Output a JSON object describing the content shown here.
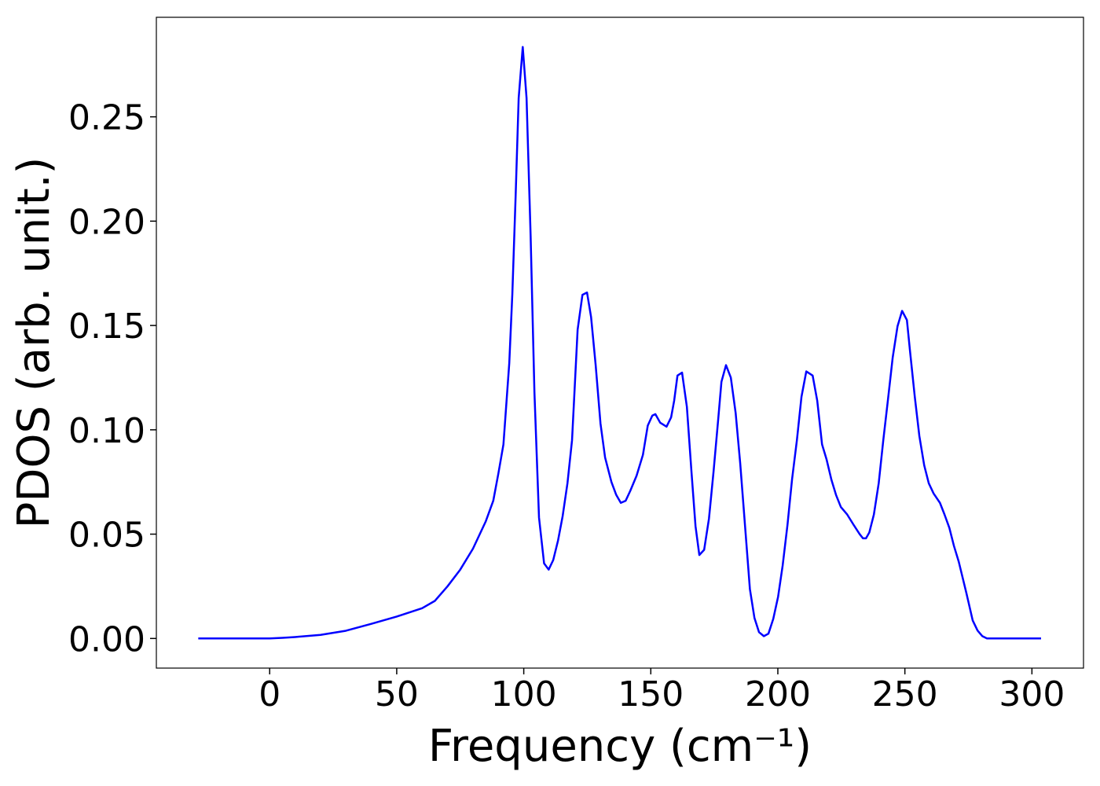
{
  "chart_data": {
    "type": "line",
    "xlabel": "Frequency (cm⁻¹)",
    "ylabel": "PDOS (arb. unit.)",
    "xlim": [
      -44.6,
      320.3
    ],
    "ylim": [
      -0.0142,
      0.2977
    ],
    "xticks": [
      0,
      50,
      100,
      150,
      200,
      250,
      300
    ],
    "yticks": [
      {
        "value": 0,
        "label": "0.00"
      },
      {
        "value": 0.05,
        "label": "0.05"
      },
      {
        "value": 0.1,
        "label": "0.10"
      },
      {
        "value": 0.15,
        "label": "0.15"
      },
      {
        "value": 0.2,
        "label": "0.20"
      },
      {
        "value": 0.25,
        "label": "0.25"
      }
    ],
    "x": [
      -28.1,
      0,
      5,
      10,
      20,
      30,
      40,
      50,
      60,
      65,
      70,
      75,
      80,
      85,
      88,
      90,
      92,
      94.3,
      95.5,
      96.8,
      98,
      99.6,
      101.1,
      102.7,
      104.2,
      106,
      108,
      109.8,
      111.6,
      113.5,
      115.3,
      117.2,
      119,
      121.2,
      123.1,
      124.9,
      126.5,
      128.3,
      130.2,
      132,
      134.5,
      136.4,
      138.2,
      140.1,
      141.9,
      144.4,
      146.9,
      148.8,
      150.6,
      151.8,
      153.7,
      156.2,
      158,
      159.2,
      160.5,
      162.3,
      164.2,
      166,
      167.6,
      169.1,
      171,
      172.9,
      174.7,
      176.6,
      177.8,
      179.6,
      181.5,
      183.4,
      185.2,
      187.1,
      189,
      190.8,
      192.6,
      194.5,
      196.3,
      198.2,
      200.1,
      201.9,
      203.8,
      205.6,
      207.5,
      209.3,
      211.2,
      213.7,
      215.5,
      217.4,
      219.2,
      221.1,
      222.9,
      224.8,
      227.3,
      229.8,
      232.2,
      233.5,
      234.7,
      236,
      237.8,
      239.7,
      241.5,
      243.3,
      245.2,
      247.1,
      248.9,
      250.8,
      252,
      253.9,
      255.7,
      257.6,
      259.4,
      261.3,
      263.8,
      265.6,
      267.5,
      269.3,
      271.2,
      274.2,
      276.7,
      278.6,
      280.5,
      282.3,
      286.6,
      303.6
    ],
    "series": [
      {
        "color": "#0000ff",
        "values": [
          0,
          0,
          0.0003,
          0.0007,
          0.0017,
          0.0037,
          0.007,
          0.0105,
          0.0145,
          0.018,
          0.025,
          0.033,
          0.043,
          0.056,
          0.066,
          0.079,
          0.093,
          0.132,
          0.165,
          0.212,
          0.259,
          0.2835,
          0.259,
          0.193,
          0.118,
          0.058,
          0.036,
          0.033,
          0.0376,
          0.047,
          0.0586,
          0.0744,
          0.095,
          0.148,
          0.1647,
          0.1658,
          0.154,
          0.131,
          0.103,
          0.0868,
          0.075,
          0.0688,
          0.065,
          0.066,
          0.0707,
          0.078,
          0.088,
          0.102,
          0.1068,
          0.1075,
          0.1034,
          0.1015,
          0.106,
          0.114,
          0.126,
          0.1274,
          0.111,
          0.08,
          0.0538,
          0.04,
          0.0425,
          0.0575,
          0.08,
          0.106,
          0.123,
          0.131,
          0.125,
          0.108,
          0.0838,
          0.0538,
          0.0237,
          0.0098,
          0.003,
          0.0011,
          0.0023,
          0.0094,
          0.02,
          0.035,
          0.0545,
          0.0763,
          0.095,
          0.1158,
          0.128,
          0.126,
          0.114,
          0.093,
          0.0857,
          0.076,
          0.0688,
          0.063,
          0.0594,
          0.0545,
          0.05,
          0.048,
          0.048,
          0.0508,
          0.0594,
          0.0744,
          0.095,
          0.114,
          0.1346,
          0.1496,
          0.157,
          0.1526,
          0.138,
          0.1158,
          0.097,
          0.083,
          0.0744,
          0.0695,
          0.065,
          0.0594,
          0.053,
          0.0444,
          0.0368,
          0.0218,
          0.0086,
          0.0038,
          0.0011,
          0,
          0,
          0
        ]
      }
    ]
  }
}
